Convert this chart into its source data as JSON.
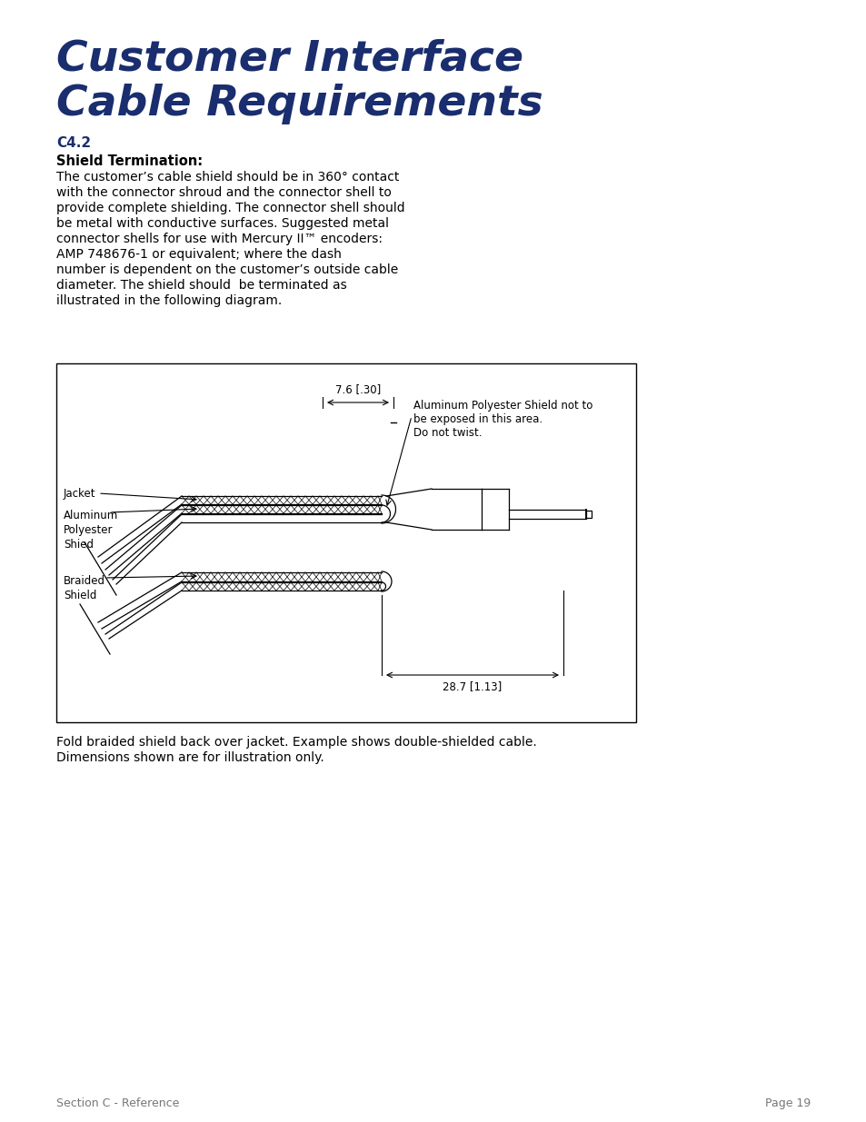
{
  "title_line1": "Customer Interface",
  "title_line2": "Cable Requirements",
  "title_color": "#1a2d6e",
  "section_label": "C4.2",
  "section_color": "#1a2d6e",
  "shield_term_label": "Shield Termination:",
  "body_text_lines": [
    "The customer’s cable shield should be in 360° contact",
    "with the connector shroud and the connector shell to",
    "provide complete shielding. The connector shell should",
    "be metal with conductive surfaces. Suggested metal",
    "connector shells for use with Mercury II™ encoders:",
    "AMP 748676-1 or equivalent; where the dash",
    "number is dependent on the customer’s outside cable",
    "diameter. The shield should  be terminated as",
    "illustrated in the following diagram."
  ],
  "caption_line1": "Fold braided shield back over jacket. Example shows double-shielded cable.",
  "caption_line2": "Dimensions shown are for illustration only.",
  "footer_left": "Section C - Reference",
  "footer_right": "Page 19",
  "dim_top": "7.6 [.30]",
  "dim_bottom": "28.7 [1.13]",
  "label_jacket": "Jacket",
  "label_aluminum": "Aluminum\nPolyester\nShied",
  "label_braided": "Braided\nShield",
  "label_annotation_line1": "Aluminum Polyester Shield not to",
  "label_annotation_line2": "be exposed in this area.",
  "label_annotation_line3": "Do not twist.",
  "bg_color": "#ffffff",
  "text_color": "#000000",
  "gray_color": "#777777"
}
